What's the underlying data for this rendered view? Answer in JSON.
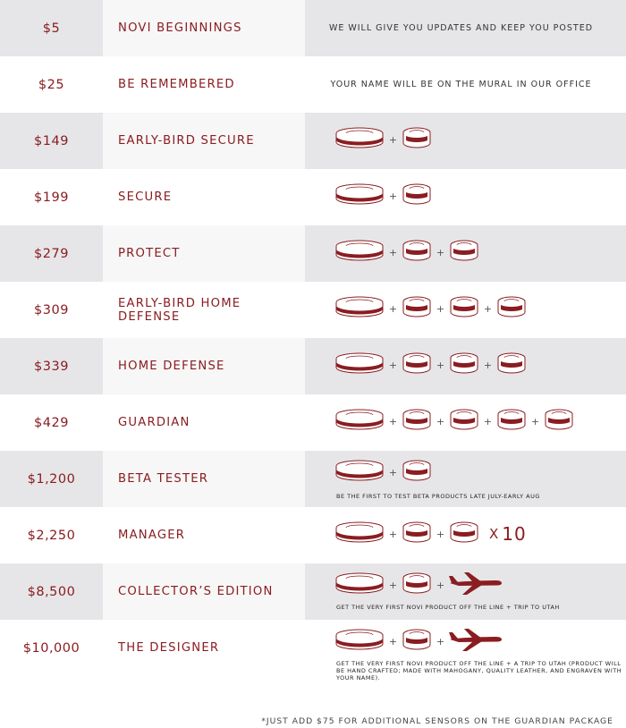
{
  "colors": {
    "accent": "#8a1d21",
    "shade": "#e6e6e8",
    "shade_light": "#f7f7f7"
  },
  "tiers": [
    {
      "price": "$5",
      "name": "NOVI BEGINNINGS",
      "reward": "WE WILL GIVE YOU UPDATES AND KEEP YOU POSTED"
    },
    {
      "price": "$25",
      "name": "BE REMEMBERED",
      "reward": "YOUR NAME WILL BE ON THE MURAL IN OUR OFFICE"
    },
    {
      "price": "$149",
      "name": "EARLY-BIRD SECURE",
      "items": [
        "hub-icon",
        "sensor-icon"
      ]
    },
    {
      "price": "$199",
      "name": "SECURE",
      "items": [
        "hub-icon",
        "sensor-icon"
      ]
    },
    {
      "price": "$279",
      "name": "PROTECT",
      "items": [
        "hub-icon",
        "sensor-icon",
        "sensor-icon"
      ]
    },
    {
      "price": "$309",
      "name": "EARLY-BIRD HOME DEFENSE",
      "items": [
        "hub-icon",
        "sensor-icon",
        "sensor-icon",
        "sensor-icon"
      ]
    },
    {
      "price": "$339",
      "name": "HOME DEFENSE",
      "items": [
        "hub-icon",
        "sensor-icon",
        "sensor-icon",
        "sensor-icon"
      ]
    },
    {
      "price": "$429",
      "name": "GUARDIAN",
      "items": [
        "hub-icon",
        "sensor-icon",
        "sensor-icon",
        "sensor-icon",
        "sensor-icon"
      ]
    },
    {
      "price": "$1,200",
      "name": "BETA TESTER",
      "items": [
        "hub-icon",
        "sensor-icon"
      ],
      "note": "BE THE FIRST TO TEST BETA PRODUCTS LATE JULY-EARLY AUG"
    },
    {
      "price": "$2,250",
      "name": "MANAGER",
      "items": [
        "hub-icon",
        "sensor-icon",
        "sensor-icon"
      ],
      "multiplier_symbol": "X",
      "multiplier_value": "10"
    },
    {
      "price": "$8,500",
      "name": "COLLECTOR’S EDITION",
      "items": [
        "hub-icon",
        "sensor-icon",
        "airplane-icon"
      ],
      "note": "GET THE VERY FIRST NOVI PRODUCT OFF THE LINE + TRIP TO UTAH"
    },
    {
      "price": "$10,000",
      "name": "THE DESIGNER",
      "items": [
        "hub-icon",
        "sensor-icon",
        "airplane-icon"
      ],
      "note": "GET THE VERY FIRST NOVI PRODUCT OFF THE LINE + A TRIP TO UTAH (PRODUCT WILL BE HAND CRAFTED; MADE WITH MAHOGANY, QUALITY LEATHER, AND ENGRAVEN WITH YOUR NAME)."
    }
  ],
  "plus_symbol": "+",
  "footnote": "*JUST ADD $75 FOR ADDITIONAL SENSORS ON THE GUARDIAN PACKAGE"
}
